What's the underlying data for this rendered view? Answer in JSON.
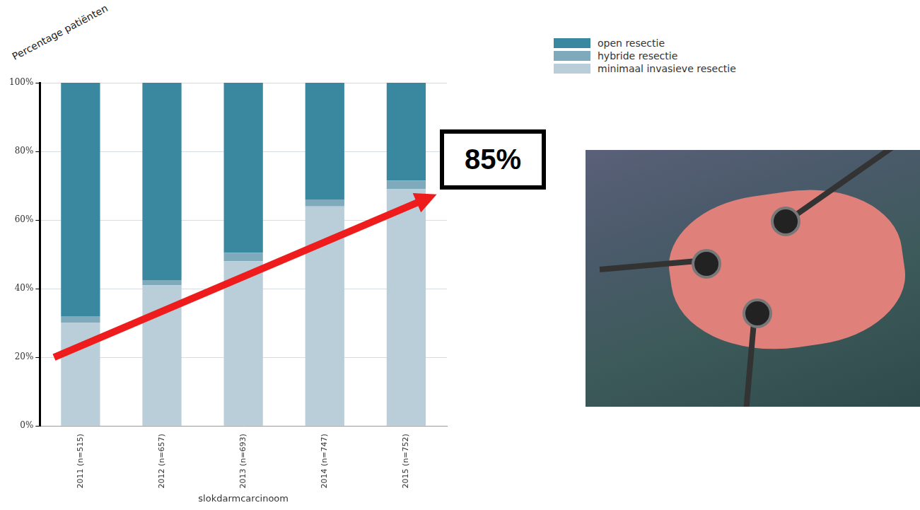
{
  "chart_data": {
    "type": "bar",
    "stacked": true,
    "y_label": "Percentage patiënten",
    "x_label": "slokdarmcarcinoom",
    "categories": [
      "2011 (n=515)",
      "2012 (n=657)",
      "2013 (n=693)",
      "2014 (n=747)",
      "2015 (n=752)"
    ],
    "series": [
      {
        "name": "open resectie",
        "color": "#3a87a0",
        "values": [
          68,
          57.5,
          49.5,
          34,
          28.5
        ]
      },
      {
        "name": "hybride resectie",
        "color": "#7eaabb",
        "values": [
          2,
          1.5,
          2.5,
          2,
          2.5
        ]
      },
      {
        "name": "minimaal invasieve resectie",
        "color": "#b9ced8",
        "values": [
          30,
          41,
          48,
          64,
          69
        ]
      }
    ],
    "ylim": [
      0,
      100
    ],
    "yticks": [
      {
        "value": 0,
        "label": "0%"
      },
      {
        "value": 20,
        "label": "20%"
      },
      {
        "value": 40,
        "label": "40%"
      },
      {
        "value": 60,
        "label": "60%"
      },
      {
        "value": 80,
        "label": "80%"
      },
      {
        "value": 100,
        "label": "100%"
      }
    ],
    "grid": true,
    "legend": "upper right",
    "annotations": [
      "85%"
    ]
  }
}
